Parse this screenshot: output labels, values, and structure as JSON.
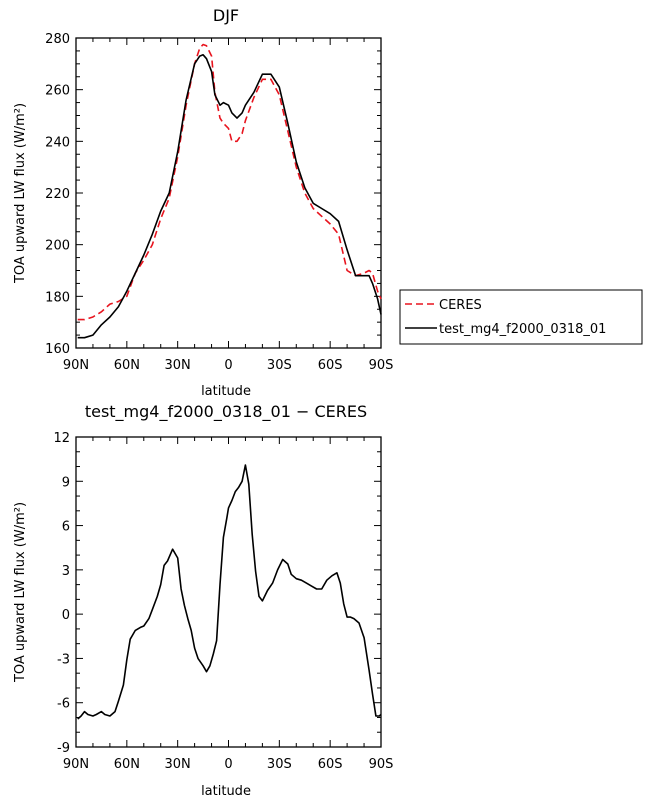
{
  "chart_data": [
    {
      "type": "line",
      "title": "DJF",
      "xlabel": "latitude",
      "ylabel": "TOA upward LW flux (W/m²)",
      "xlim": [
        -90,
        90
      ],
      "ylim": [
        160,
        280
      ],
      "xticks": [
        -90,
        -60,
        -30,
        0,
        30,
        60,
        90
      ],
      "xtick_labels": [
        "90N",
        "60N",
        "30N",
        "0",
        "30S",
        "60S",
        "90S"
      ],
      "yticks": [
        160,
        180,
        200,
        220,
        240,
        260,
        280
      ],
      "ytick_labels": [
        "160",
        "180",
        "200",
        "220",
        "240",
        "260",
        "280"
      ],
      "legend_placement": "outside-right",
      "series": [
        {
          "name": "CERES",
          "color": "#e8141e",
          "dash": "dashed",
          "x": [
            -89,
            -85,
            -80,
            -75,
            -70,
            -65,
            -60,
            -55,
            -50,
            -45,
            -40,
            -35,
            -30,
            -25,
            -20,
            -17,
            -15,
            -13,
            -10,
            -8,
            -5,
            -3,
            0,
            2,
            5,
            8,
            10,
            15,
            20,
            25,
            30,
            35,
            40,
            45,
            50,
            55,
            60,
            65,
            70,
            75,
            80,
            83,
            85,
            88,
            90
          ],
          "y": [
            171,
            171,
            172,
            174,
            177,
            178,
            180,
            189,
            194,
            200,
            210,
            218,
            234,
            254,
            270,
            276,
            277.5,
            277,
            273,
            259,
            249,
            247,
            245,
            240,
            240,
            243,
            248,
            257,
            264,
            264,
            258,
            244,
            230,
            220,
            214,
            211,
            208,
            204,
            190,
            188,
            189,
            190,
            189,
            182,
            179
          ]
        },
        {
          "name": "test_mg4_f2000_0318_01",
          "color": "#000000",
          "dash": "solid",
          "x": [
            -89,
            -85,
            -80,
            -75,
            -70,
            -65,
            -60,
            -55,
            -50,
            -45,
            -40,
            -35,
            -30,
            -25,
            -20,
            -17,
            -15,
            -13,
            -10,
            -8,
            -5,
            -3,
            0,
            2,
            5,
            8,
            10,
            15,
            20,
            25,
            30,
            35,
            40,
            45,
            50,
            55,
            60,
            65,
            70,
            75,
            80,
            83,
            85,
            88,
            90
          ],
          "y": [
            164,
            164,
            165,
            169,
            172,
            176,
            182,
            189,
            196,
            204,
            213,
            220,
            236,
            256,
            270,
            273,
            273.5,
            272,
            267,
            258,
            254,
            255,
            254,
            251,
            249,
            251,
            254,
            259,
            266,
            266,
            261,
            247,
            232,
            222,
            216,
            214,
            212,
            209,
            198,
            188,
            188,
            188,
            185,
            179,
            173
          ]
        }
      ]
    },
    {
      "type": "line",
      "title": "test_mg4_f2000_0318_01 − CERES",
      "xlabel": "latitude",
      "ylabel": "TOA upward LW flux (W/m²)",
      "xlim": [
        -90,
        90
      ],
      "ylim": [
        -9,
        12
      ],
      "xticks": [
        -90,
        -60,
        -30,
        0,
        30,
        60,
        90
      ],
      "xtick_labels": [
        "90N",
        "60N",
        "30N",
        "0",
        "30S",
        "60S",
        "90S"
      ],
      "yticks": [
        -9,
        -6,
        -3,
        0,
        3,
        6,
        9,
        12
      ],
      "ytick_labels": [
        "-9",
        "-6",
        "-3",
        "0",
        "3",
        "6",
        "9",
        "12"
      ],
      "series": [
        {
          "color": "#000000",
          "dash": "solid",
          "x": [
            -89,
            -87,
            -85,
            -83,
            -80,
            -78,
            -75,
            -73,
            -70,
            -67,
            -65,
            -62,
            -60,
            -58,
            -55,
            -52,
            -50,
            -47,
            -45,
            -42,
            -40,
            -38,
            -36,
            -33,
            -30,
            -28,
            -26,
            -24,
            -22,
            -20,
            -18,
            -15,
            -13,
            -11,
            -9,
            -7,
            -5,
            -3,
            -1,
            0,
            2,
            4,
            6,
            8,
            10,
            12,
            14,
            16,
            18,
            20,
            23,
            26,
            29,
            32,
            35,
            37,
            40,
            43,
            46,
            49,
            52,
            55,
            58,
            61,
            64,
            66,
            68,
            70,
            72,
            74,
            77,
            80,
            83,
            85,
            87,
            89,
            90
          ],
          "y": [
            -7.1,
            -6.9,
            -6.6,
            -6.8,
            -6.9,
            -6.8,
            -6.6,
            -6.8,
            -6.9,
            -6.6,
            -5.9,
            -4.8,
            -3.1,
            -1.7,
            -1.1,
            -0.9,
            -0.8,
            -0.3,
            0.3,
            1.2,
            2.0,
            3.3,
            3.6,
            4.4,
            3.8,
            1.7,
            0.6,
            -0.3,
            -1.1,
            -2.3,
            -3.0,
            -3.5,
            -3.9,
            -3.5,
            -2.7,
            -1.8,
            2.0,
            5.2,
            6.5,
            7.2,
            7.7,
            8.3,
            8.6,
            9.0,
            10.1,
            8.8,
            5.4,
            2.9,
            1.2,
            0.9,
            1.6,
            2.1,
            3.0,
            3.7,
            3.4,
            2.7,
            2.4,
            2.3,
            2.1,
            1.9,
            1.7,
            1.7,
            2.3,
            2.6,
            2.8,
            2.1,
            0.7,
            -0.2,
            -0.2,
            -0.3,
            -0.6,
            -1.6,
            -3.8,
            -5.4,
            -6.9,
            -6.9,
            -6.8
          ]
        }
      ]
    }
  ]
}
